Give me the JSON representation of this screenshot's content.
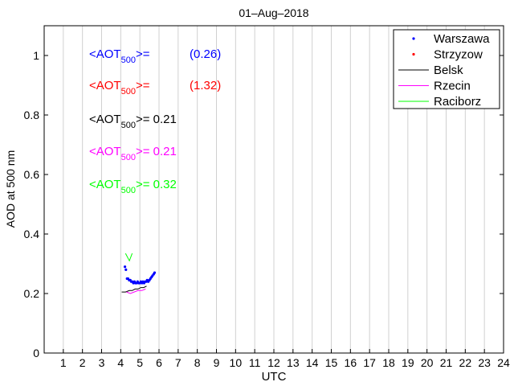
{
  "chart_data": {
    "type": "scatter",
    "title": "01–Aug–2018",
    "xlabel": "UTC",
    "ylabel": "AOD at 500 nm",
    "xlim": [
      0,
      24
    ],
    "ylim": [
      0,
      1.1
    ],
    "x_ticks": [
      "1",
      "2",
      "3",
      "4",
      "5",
      "6",
      "7",
      "8",
      "9",
      "10",
      "11",
      "12",
      "13",
      "14",
      "15",
      "16",
      "17",
      "18",
      "19",
      "20",
      "21",
      "22",
      "23",
      "24"
    ],
    "y_ticks": [
      "0",
      "0.2",
      "0.4",
      "0.6",
      "0.8",
      "1"
    ],
    "grid": "vertical",
    "legend_position": "top-right",
    "series": [
      {
        "name": "Warszawa",
        "color": "#0000ff",
        "marker": "dot",
        "points": [
          [
            4.22,
            0.29
          ],
          [
            4.27,
            0.28
          ],
          [
            4.33,
            0.25
          ],
          [
            4.38,
            0.25
          ],
          [
            4.44,
            0.245
          ],
          [
            4.5,
            0.245
          ],
          [
            4.55,
            0.24
          ],
          [
            4.61,
            0.24
          ],
          [
            4.66,
            0.235
          ],
          [
            4.72,
            0.24
          ],
          [
            4.77,
            0.235
          ],
          [
            4.83,
            0.235
          ],
          [
            4.88,
            0.24
          ],
          [
            4.94,
            0.235
          ],
          [
            5.0,
            0.235
          ],
          [
            5.05,
            0.24
          ],
          [
            5.11,
            0.235
          ],
          [
            5.16,
            0.24
          ],
          [
            5.22,
            0.235
          ],
          [
            5.27,
            0.24
          ],
          [
            5.33,
            0.24
          ],
          [
            5.38,
            0.245
          ],
          [
            5.44,
            0.24
          ],
          [
            5.5,
            0.245
          ],
          [
            5.55,
            0.25
          ],
          [
            5.61,
            0.255
          ],
          [
            5.66,
            0.26
          ],
          [
            5.72,
            0.265
          ],
          [
            5.77,
            0.27
          ]
        ],
        "mean": "(0.26)"
      },
      {
        "name": "Strzyzow",
        "color": "#ff0000",
        "marker": "dot",
        "points": [],
        "mean": "(1.32)"
      },
      {
        "name": "Belsk",
        "color": "#000000",
        "marker": "line",
        "points": [
          [
            4.05,
            0.205
          ],
          [
            4.25,
            0.205
          ],
          [
            4.45,
            0.21
          ],
          [
            4.6,
            0.21
          ],
          [
            4.75,
            0.215
          ],
          [
            4.9,
            0.215
          ],
          [
            5.05,
            0.22
          ],
          [
            5.2,
            0.22
          ],
          [
            5.35,
            0.225
          ]
        ],
        "mean": "= 0.21"
      },
      {
        "name": "Rzecin",
        "color": "#ff00ff",
        "marker": "line",
        "points": [
          [
            4.3,
            0.205
          ],
          [
            4.5,
            0.2
          ],
          [
            4.7,
            0.205
          ],
          [
            4.9,
            0.21
          ],
          [
            5.1,
            0.21
          ],
          [
            5.3,
            0.215
          ]
        ],
        "mean": "= 0.21"
      },
      {
        "name": "Raciborz",
        "color": "#00ff00",
        "marker": "line",
        "points": [
          [
            4.25,
            0.335
          ],
          [
            4.45,
            0.31
          ],
          [
            4.6,
            0.335
          ]
        ],
        "mean": "= 0.32"
      }
    ],
    "annotation_prefix": "<AOT",
    "annotation_sub": "500",
    "annotation_suffix": ">="
  }
}
